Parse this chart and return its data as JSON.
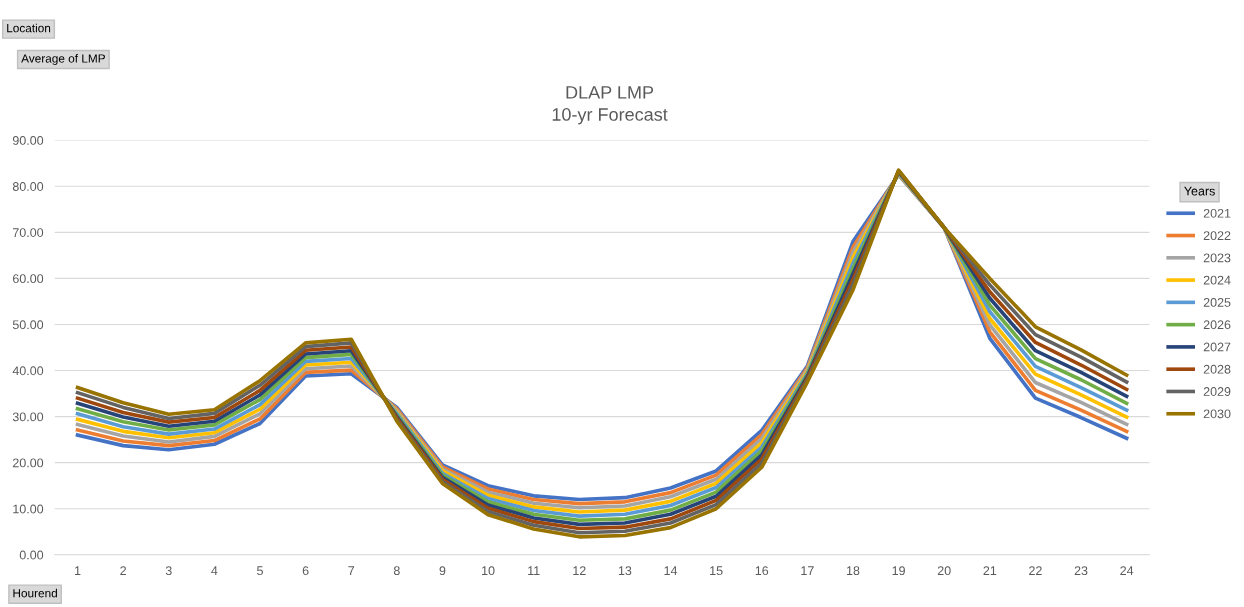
{
  "chart_data": {
    "type": "line",
    "title": "DLAP LMP",
    "subtitle": "10-yr Forecast",
    "xlabel": "Hourend",
    "legend_title": "Years",
    "annotations": [
      "Location",
      "Average of LMP"
    ],
    "categories": [
      "1",
      "2",
      "3",
      "4",
      "5",
      "6",
      "7",
      "8",
      "9",
      "10",
      "11",
      "12",
      "13",
      "14",
      "15",
      "16",
      "17",
      "18",
      "19",
      "20",
      "21",
      "22",
      "23",
      "24"
    ],
    "ylim": [
      0,
      90
    ],
    "yticks": [
      {
        "value": 0,
        "label": "0.00"
      },
      {
        "value": 10,
        "label": "10.00"
      },
      {
        "value": 20,
        "label": "20.00"
      },
      {
        "value": 30,
        "label": "30.00"
      },
      {
        "value": 40,
        "label": "40.00"
      },
      {
        "value": 50,
        "label": "50.00"
      },
      {
        "value": 60,
        "label": "60.00"
      },
      {
        "value": 70,
        "label": "70.00"
      },
      {
        "value": 80,
        "label": "80.00"
      },
      {
        "value": 90,
        "label": "90.00"
      }
    ],
    "grid": "y",
    "legend": "right",
    "marker": "none",
    "line_style": "solid",
    "series": [
      {
        "name": "2021",
        "color": "#4472c4",
        "values": [
          26.0,
          23.7,
          22.8,
          24.0,
          28.5,
          38.8,
          39.3,
          32.0,
          19.5,
          15.0,
          12.8,
          12.0,
          12.4,
          14.5,
          18.2,
          27.0,
          41.0,
          68.0,
          82.5,
          71.0,
          47.0,
          34.0,
          29.8,
          25.3
        ]
      },
      {
        "name": "2022",
        "color": "#ed7d31",
        "values": [
          27.1,
          24.7,
          23.7,
          24.8,
          29.5,
          39.6,
          40.1,
          31.7,
          19.1,
          14.3,
          12.0,
          11.1,
          11.5,
          13.5,
          17.3,
          26.1,
          40.6,
          66.8,
          82.6,
          71.0,
          48.4,
          35.7,
          31.4,
          26.8
        ]
      },
      {
        "name": "2023",
        "color": "#a5a5a5",
        "values": [
          28.3,
          25.8,
          24.5,
          25.7,
          30.6,
          40.4,
          41.0,
          31.3,
          18.6,
          13.6,
          11.2,
          10.2,
          10.6,
          12.6,
          16.4,
          25.2,
          40.2,
          65.7,
          82.7,
          71.0,
          49.9,
          37.4,
          33.1,
          28.3
        ]
      },
      {
        "name": "2024",
        "color": "#ffc000",
        "values": [
          29.4,
          26.8,
          25.4,
          26.5,
          31.6,
          41.2,
          41.8,
          31.0,
          18.2,
          12.9,
          10.4,
          9.3,
          9.7,
          11.6,
          15.5,
          24.3,
          39.8,
          64.5,
          82.8,
          71.0,
          51.3,
          39.2,
          34.7,
          29.9
        ]
      },
      {
        "name": "2025",
        "color": "#5b9bd5",
        "values": [
          30.6,
          27.8,
          26.2,
          27.3,
          32.6,
          42.0,
          42.6,
          30.7,
          17.7,
          12.2,
          9.6,
          8.4,
          8.8,
          10.7,
          14.6,
          23.4,
          39.4,
          63.3,
          82.9,
          71.0,
          52.8,
          40.9,
          36.3,
          31.4
        ]
      },
      {
        "name": "2026",
        "color": "#70ad47",
        "values": [
          31.7,
          28.9,
          27.1,
          28.2,
          33.7,
          42.8,
          43.5,
          30.3,
          17.3,
          11.5,
          8.8,
          7.5,
          7.8,
          9.7,
          13.6,
          22.6,
          39.1,
          62.2,
          83.1,
          71.0,
          54.2,
          42.6,
          38.0,
          32.9
        ]
      },
      {
        "name": "2027",
        "color": "#264478",
        "values": [
          32.9,
          29.9,
          27.9,
          29.0,
          34.7,
          43.6,
          44.3,
          30.0,
          16.8,
          10.8,
          8.0,
          6.6,
          6.9,
          8.8,
          12.7,
          21.7,
          38.7,
          61.0,
          83.2,
          71.0,
          55.7,
          44.3,
          39.6,
          34.4
        ]
      },
      {
        "name": "2028",
        "color": "#9e480e",
        "values": [
          34.0,
          30.9,
          28.8,
          29.8,
          35.7,
          44.4,
          45.1,
          29.7,
          16.4,
          10.1,
          7.2,
          5.7,
          6.0,
          7.8,
          11.8,
          20.8,
          38.3,
          59.8,
          83.3,
          71.0,
          57.1,
          46.1,
          41.2,
          35.9
        ]
      },
      {
        "name": "2029",
        "color": "#636363",
        "values": [
          35.2,
          32.0,
          29.6,
          30.7,
          36.8,
          45.2,
          46.0,
          29.3,
          15.9,
          9.4,
          6.4,
          4.8,
          5.1,
          6.9,
          10.9,
          19.9,
          37.9,
          58.7,
          83.4,
          71.0,
          58.6,
          47.8,
          42.9,
          37.5
        ]
      },
      {
        "name": "2030",
        "color": "#997300",
        "values": [
          36.3,
          33.0,
          30.5,
          31.5,
          37.8,
          46.0,
          46.8,
          29.0,
          15.5,
          8.7,
          5.6,
          3.9,
          4.2,
          5.9,
          10.0,
          19.0,
          37.5,
          57.5,
          83.5,
          71.0,
          60.0,
          49.5,
          44.5,
          39.0
        ]
      }
    ]
  }
}
